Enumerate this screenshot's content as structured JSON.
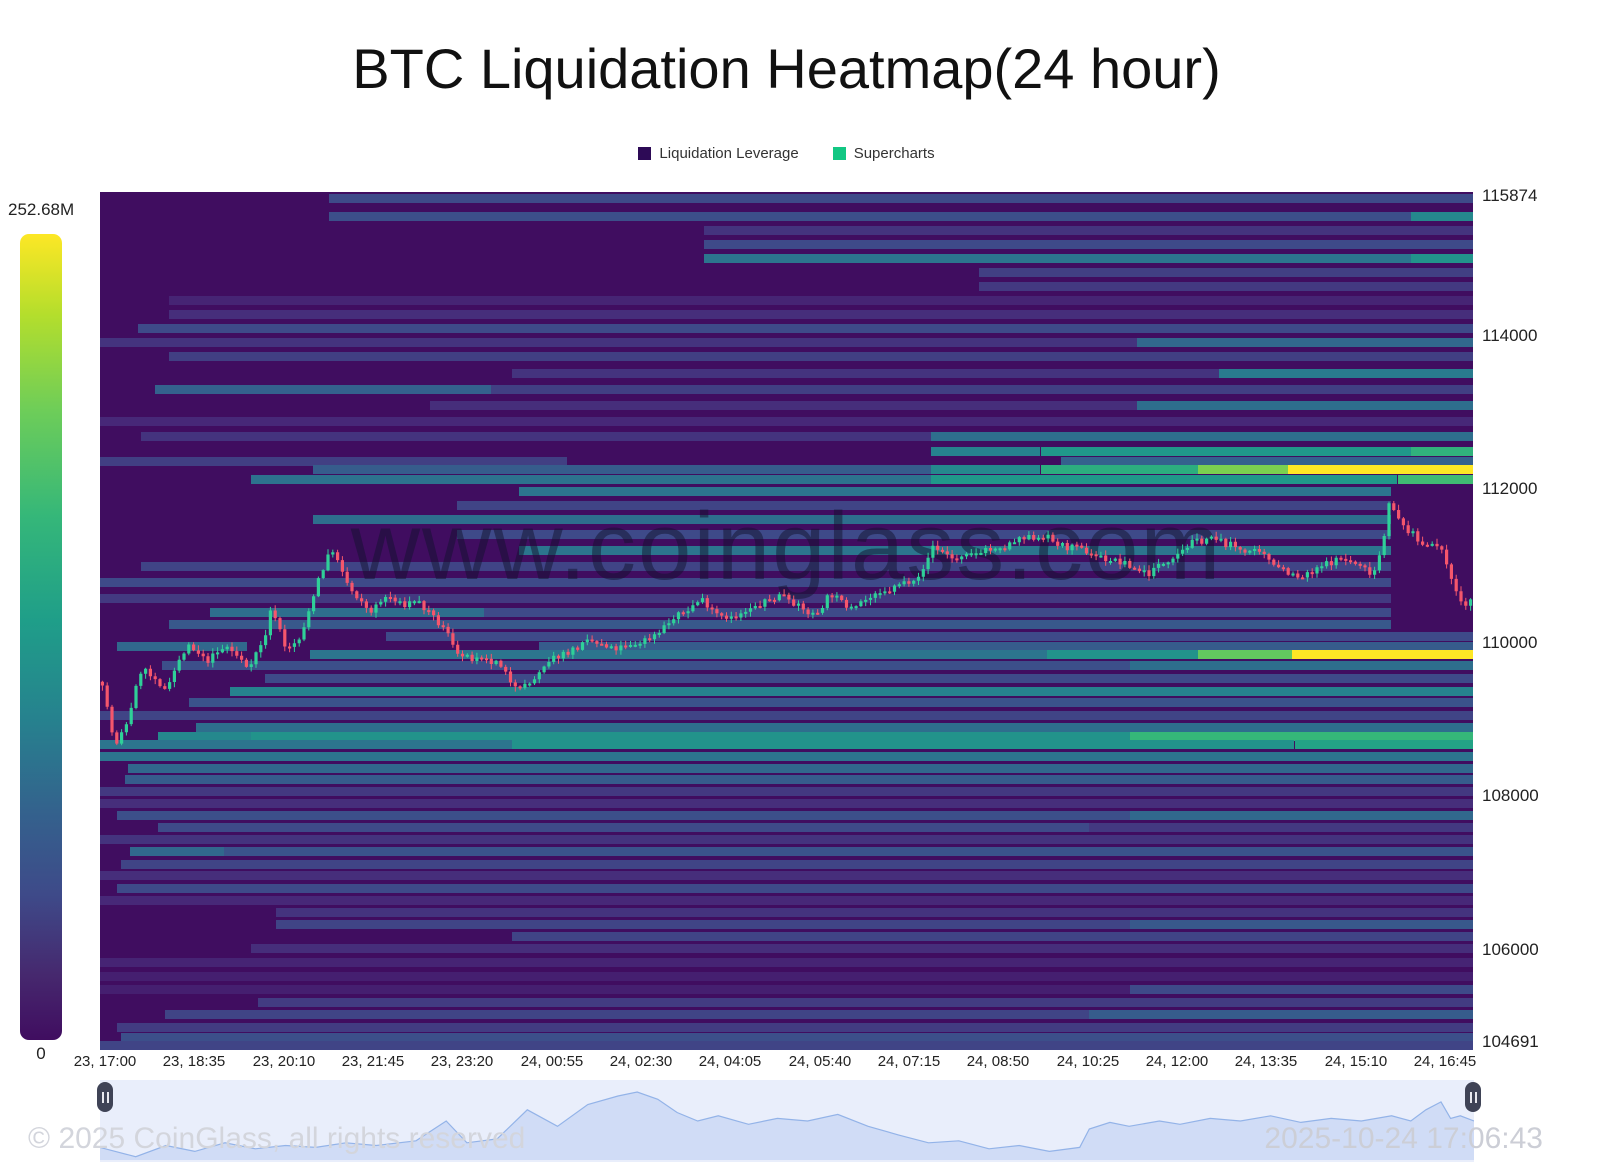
{
  "title": "BTC Liquidation Heatmap(24 hour)",
  "legend": [
    {
      "label": "Liquidation Leverage",
      "color": "#2d0a56"
    },
    {
      "label": "Supercharts",
      "color": "#12c783"
    }
  ],
  "colorbar": {
    "max_label": "252.68M",
    "min_label": "0"
  },
  "watermark": "www.coinglass.com",
  "footer": {
    "copyright": "© 2025 CoinGlass, all rights reserved",
    "timestamp": "2025-10-24 17:06:43"
  },
  "colors": {
    "heatmap_bg": "#400d60",
    "candle_up": "#2fd098",
    "candle_down": "#f5566c",
    "nav_fill": "#cbd8f4",
    "nav_line": "#93b3e8",
    "nav_bg": "#e9eefb",
    "peak_band": "#fde725"
  },
  "chart_data": {
    "type": "heatmap",
    "title": "BTC Liquidation Heatmap(24 hour)",
    "colorbar_max_label": "252.68M",
    "colorbar_min_label": "0",
    "y_axis": {
      "min": 104691,
      "max": 115874,
      "ticks": [
        115874,
        114000,
        112000,
        110000,
        108000,
        106000,
        104691
      ]
    },
    "x_ticks": [
      "23, 17:00",
      "23, 18:35",
      "23, 20:10",
      "23, 21:45",
      "23, 23:20",
      "24, 00:55",
      "24, 02:30",
      "24, 04:05",
      "24, 05:40",
      "24, 07:15",
      "24, 08:50",
      "24, 10:25",
      "24, 12:00",
      "24, 13:35",
      "24, 15:10",
      "24, 16:45"
    ],
    "bands": [
      [
        115795,
        [
          [
            0.167,
            1,
            0.3
          ]
        ]
      ],
      [
        115560,
        [
          [
            0.167,
            1,
            0.32
          ],
          [
            0.955,
            1,
            0.52
          ]
        ]
      ],
      [
        115375,
        [
          [
            0.44,
            1,
            0.22
          ]
        ]
      ],
      [
        115190,
        [
          [
            0.44,
            1,
            0.3
          ]
        ]
      ],
      [
        115010,
        [
          [
            0.44,
            1,
            0.46
          ],
          [
            0.955,
            1,
            0.56
          ]
        ]
      ],
      [
        114825,
        [
          [
            0.64,
            1,
            0.26
          ]
        ]
      ],
      [
        114640,
        [
          [
            0.64,
            1,
            0.24
          ]
        ]
      ],
      [
        114460,
        [
          [
            0.05,
            1,
            0.15
          ]
        ]
      ],
      [
        114275,
        [
          [
            0.05,
            1,
            0.2
          ]
        ]
      ],
      [
        114090,
        [
          [
            0.028,
            1,
            0.3
          ]
        ]
      ],
      [
        113910,
        [
          [
            0,
            1,
            0.22
          ],
          [
            0.755,
            1,
            0.42
          ]
        ]
      ],
      [
        113725,
        [
          [
            0.05,
            1,
            0.26
          ]
        ]
      ],
      [
        113515,
        [
          [
            0.3,
            1,
            0.22
          ],
          [
            0.815,
            1,
            0.48
          ]
        ]
      ],
      [
        113305,
        [
          [
            0.04,
            0.285,
            0.4
          ],
          [
            0.285,
            1,
            0.26
          ]
        ]
      ],
      [
        113095,
        [
          [
            0.24,
            1,
            0.2
          ],
          [
            0.755,
            1,
            0.44
          ]
        ]
      ],
      [
        112885,
        [
          [
            0,
            1,
            0.18
          ]
        ]
      ],
      [
        112690,
        [
          [
            0.03,
            1,
            0.22
          ],
          [
            0.605,
            1,
            0.44
          ]
        ]
      ],
      [
        112490,
        [
          [
            0.605,
            0.685,
            0.5
          ],
          [
            0.685,
            1,
            0.58
          ],
          [
            0.955,
            1,
            0.68
          ]
        ]
      ],
      [
        112360,
        [
          [
            0,
            0.34,
            0.26
          ],
          [
            0.7,
            1,
            0.4
          ]
        ]
      ],
      [
        112255,
        [
          [
            0.155,
            0.605,
            0.38
          ],
          [
            0.605,
            0.685,
            0.52
          ],
          [
            0.685,
            0.8,
            0.66
          ],
          [
            0.8,
            0.865,
            0.82
          ],
          [
            0.865,
            1,
            1
          ]
        ]
      ],
      [
        112125,
        [
          [
            0.11,
            0.605,
            0.45
          ],
          [
            0.605,
            0.945,
            0.58
          ],
          [
            0.945,
            1,
            0.72
          ]
        ]
      ],
      [
        111965,
        [
          [
            0.305,
            0.94,
            0.46
          ]
        ]
      ],
      [
        111785,
        [
          [
            0.26,
            0.94,
            0.28
          ]
        ]
      ],
      [
        111600,
        [
          [
            0.155,
            0.94,
            0.44
          ]
        ]
      ],
      [
        111415,
        [
          [
            0.26,
            0.94,
            0.3
          ]
        ]
      ],
      [
        111205,
        [
          [
            0.305,
            0.94,
            0.46
          ]
        ]
      ],
      [
        110995,
        [
          [
            0.03,
            0.94,
            0.28
          ]
        ]
      ],
      [
        110785,
        [
          [
            0,
            0.94,
            0.3
          ]
        ]
      ],
      [
        110575,
        [
          [
            0,
            0.94,
            0.24
          ]
        ]
      ],
      [
        110395,
        [
          [
            0.08,
            0.28,
            0.44
          ],
          [
            0.28,
            0.94,
            0.3
          ]
        ]
      ],
      [
        110235,
        [
          [
            0.05,
            0.94,
            0.36
          ]
        ]
      ],
      [
        110080,
        [
          [
            0.208,
            1,
            0.3
          ]
        ]
      ],
      [
        109950,
        [
          [
            0.012,
            0.107,
            0.42
          ],
          [
            0.32,
            1,
            0.38
          ]
        ]
      ],
      [
        109845,
        [
          [
            0.153,
            0.69,
            0.46
          ],
          [
            0.69,
            0.8,
            0.56
          ],
          [
            0.8,
            0.868,
            0.78
          ],
          [
            0.868,
            1,
            1
          ]
        ]
      ],
      [
        109700,
        [
          [
            0.045,
            0.75,
            0.32
          ],
          [
            0.75,
            1,
            0.44
          ]
        ]
      ],
      [
        109530,
        [
          [
            0.12,
            1,
            0.3
          ]
        ]
      ],
      [
        109370,
        [
          [
            0.095,
            1,
            0.5
          ]
        ]
      ],
      [
        109215,
        [
          [
            0.065,
            1,
            0.34
          ]
        ]
      ],
      [
        109055,
        [
          [
            0,
            1,
            0.28
          ]
        ]
      ],
      [
        108900,
        [
          [
            0.07,
            1,
            0.44
          ]
        ]
      ],
      [
        108780,
        [
          [
            0.042,
            0.11,
            0.52
          ],
          [
            0.11,
            0.75,
            0.56
          ],
          [
            0.75,
            1,
            0.7
          ]
        ]
      ],
      [
        108675,
        [
          [
            0,
            0.3,
            0.46
          ],
          [
            0.3,
            0.87,
            0.56
          ],
          [
            0.87,
            1,
            0.62
          ]
        ]
      ],
      [
        108520,
        [
          [
            0,
            1,
            0.46
          ]
        ]
      ],
      [
        108360,
        [
          [
            0.02,
            1,
            0.42
          ]
        ]
      ],
      [
        108215,
        [
          [
            0.018,
            1,
            0.38
          ]
        ]
      ],
      [
        108060,
        [
          [
            0,
            1,
            0.24
          ]
        ]
      ],
      [
        107900,
        [
          [
            0,
            1,
            0.2
          ]
        ]
      ],
      [
        107745,
        [
          [
            0.012,
            0.75,
            0.32
          ],
          [
            0.75,
            1,
            0.42
          ]
        ]
      ],
      [
        107590,
        [
          [
            0.042,
            0.72,
            0.3
          ],
          [
            0.72,
            1,
            0.24
          ]
        ]
      ],
      [
        107430,
        [
          [
            0,
            1,
            0.22
          ]
        ]
      ],
      [
        107275,
        [
          [
            0.022,
            0.09,
            0.42
          ],
          [
            0.09,
            1,
            0.34
          ]
        ]
      ],
      [
        107115,
        [
          [
            0.015,
            1,
            0.28
          ]
        ]
      ],
      [
        106960,
        [
          [
            0,
            1,
            0.2
          ]
        ]
      ],
      [
        106800,
        [
          [
            0.012,
            1,
            0.3
          ]
        ]
      ],
      [
        106645,
        [
          [
            0,
            1,
            0.18
          ]
        ]
      ],
      [
        106485,
        [
          [
            0.128,
            1,
            0.22
          ]
        ]
      ],
      [
        106330,
        [
          [
            0.128,
            0.75,
            0.28
          ],
          [
            0.75,
            1,
            0.36
          ]
        ]
      ],
      [
        106170,
        [
          [
            0.3,
            1,
            0.28
          ]
        ]
      ],
      [
        106015,
        [
          [
            0.11,
            1,
            0.2
          ]
        ]
      ],
      [
        105830,
        [
          [
            0,
            1,
            0.15
          ]
        ]
      ],
      [
        105645,
        [
          [
            0,
            1,
            0.12
          ]
        ]
      ],
      [
        105475,
        [
          [
            0,
            0.75,
            0.12
          ],
          [
            0.75,
            1,
            0.3
          ]
        ]
      ],
      [
        105305,
        [
          [
            0.115,
            1,
            0.25
          ]
        ]
      ],
      [
        105150,
        [
          [
            0.047,
            0.72,
            0.28
          ],
          [
            0.72,
            1,
            0.38
          ]
        ]
      ],
      [
        104990,
        [
          [
            0.012,
            1,
            0.25
          ]
        ]
      ],
      [
        104860,
        [
          [
            0.015,
            1,
            0.32
          ]
        ]
      ],
      [
        104745,
        [
          [
            0,
            1,
            0.28
          ]
        ]
      ]
    ],
    "price_path": [
      [
        0.0,
        109490
      ],
      [
        0.006,
        108900
      ],
      [
        0.01,
        108640
      ],
      [
        0.018,
        108970
      ],
      [
        0.029,
        109690
      ],
      [
        0.044,
        109360
      ],
      [
        0.062,
        109950
      ],
      [
        0.076,
        109760
      ],
      [
        0.091,
        109950
      ],
      [
        0.106,
        109690
      ],
      [
        0.118,
        110020
      ],
      [
        0.124,
        110480
      ],
      [
        0.135,
        109890
      ],
      [
        0.146,
        110080
      ],
      [
        0.157,
        110810
      ],
      [
        0.168,
        111230
      ],
      [
        0.176,
        110870
      ],
      [
        0.186,
        110550
      ],
      [
        0.197,
        110410
      ],
      [
        0.208,
        110610
      ],
      [
        0.219,
        110480
      ],
      [
        0.229,
        110570
      ],
      [
        0.24,
        110350
      ],
      [
        0.251,
        110150
      ],
      [
        0.262,
        109820
      ],
      [
        0.275,
        109760
      ],
      [
        0.288,
        109730
      ],
      [
        0.299,
        109490
      ],
      [
        0.31,
        109430
      ],
      [
        0.32,
        109600
      ],
      [
        0.331,
        109820
      ],
      [
        0.344,
        109910
      ],
      [
        0.357,
        110020
      ],
      [
        0.371,
        109910
      ],
      [
        0.386,
        109950
      ],
      [
        0.401,
        110080
      ],
      [
        0.414,
        110260
      ],
      [
        0.426,
        110410
      ],
      [
        0.438,
        110570
      ],
      [
        0.45,
        110390
      ],
      [
        0.462,
        110310
      ],
      [
        0.475,
        110440
      ],
      [
        0.487,
        110550
      ],
      [
        0.499,
        110650
      ],
      [
        0.51,
        110440
      ],
      [
        0.521,
        110350
      ],
      [
        0.532,
        110650
      ],
      [
        0.543,
        110480
      ],
      [
        0.555,
        110550
      ],
      [
        0.568,
        110610
      ],
      [
        0.581,
        110740
      ],
      [
        0.591,
        110830
      ],
      [
        0.601,
        110940
      ],
      [
        0.606,
        111270
      ],
      [
        0.615,
        111180
      ],
      [
        0.625,
        111070
      ],
      [
        0.635,
        111140
      ],
      [
        0.645,
        111230
      ],
      [
        0.655,
        111180
      ],
      [
        0.666,
        111310
      ],
      [
        0.677,
        111360
      ],
      [
        0.688,
        111400
      ],
      [
        0.699,
        111270
      ],
      [
        0.71,
        111230
      ],
      [
        0.721,
        111180
      ],
      [
        0.732,
        111100
      ],
      [
        0.743,
        111050
      ],
      [
        0.754,
        110970
      ],
      [
        0.765,
        110910
      ],
      [
        0.776,
        111050
      ],
      [
        0.787,
        111200
      ],
      [
        0.798,
        111310
      ],
      [
        0.808,
        111360
      ],
      [
        0.819,
        111310
      ],
      [
        0.83,
        111230
      ],
      [
        0.841,
        111180
      ],
      [
        0.852,
        111100
      ],
      [
        0.863,
        110970
      ],
      [
        0.874,
        110830
      ],
      [
        0.885,
        110910
      ],
      [
        0.896,
        111050
      ],
      [
        0.907,
        111100
      ],
      [
        0.918,
        111000
      ],
      [
        0.929,
        110910
      ],
      [
        0.936,
        111300
      ],
      [
        0.94,
        111870
      ],
      [
        0.946,
        111620
      ],
      [
        0.952,
        111500
      ],
      [
        0.958,
        111400
      ],
      [
        0.965,
        111270
      ],
      [
        0.972,
        111330
      ],
      [
        0.98,
        111140
      ],
      [
        0.985,
        110940
      ],
      [
        0.99,
        110610
      ],
      [
        0.996,
        110480
      ],
      [
        1.0,
        110550
      ]
    ],
    "navigator": [
      [
        0.0,
        0.16
      ],
      [
        0.026,
        0.02
      ],
      [
        0.048,
        0.19
      ],
      [
        0.069,
        0.1
      ],
      [
        0.091,
        0.23
      ],
      [
        0.113,
        0.14
      ],
      [
        0.135,
        0.19
      ],
      [
        0.157,
        0.16
      ],
      [
        0.179,
        0.23
      ],
      [
        0.201,
        0.19
      ],
      [
        0.23,
        0.26
      ],
      [
        0.252,
        0.56
      ],
      [
        0.267,
        0.23
      ],
      [
        0.289,
        0.29
      ],
      [
        0.311,
        0.73
      ],
      [
        0.333,
        0.48
      ],
      [
        0.355,
        0.81
      ],
      [
        0.377,
        0.94
      ],
      [
        0.391,
        1.0
      ],
      [
        0.406,
        0.89
      ],
      [
        0.42,
        0.69
      ],
      [
        0.435,
        0.56
      ],
      [
        0.45,
        0.64
      ],
      [
        0.472,
        0.51
      ],
      [
        0.493,
        0.6
      ],
      [
        0.515,
        0.56
      ],
      [
        0.537,
        0.66
      ],
      [
        0.559,
        0.48
      ],
      [
        0.581,
        0.35
      ],
      [
        0.603,
        0.23
      ],
      [
        0.625,
        0.26
      ],
      [
        0.647,
        0.14
      ],
      [
        0.669,
        0.19
      ],
      [
        0.691,
        0.1
      ],
      [
        0.713,
        0.16
      ],
      [
        0.72,
        0.44
      ],
      [
        0.735,
        0.54
      ],
      [
        0.749,
        0.48
      ],
      [
        0.771,
        0.56
      ],
      [
        0.786,
        0.51
      ],
      [
        0.808,
        0.6
      ],
      [
        0.83,
        0.56
      ],
      [
        0.852,
        0.64
      ],
      [
        0.874,
        0.54
      ],
      [
        0.896,
        0.6
      ],
      [
        0.918,
        0.56
      ],
      [
        0.94,
        0.64
      ],
      [
        0.954,
        0.56
      ],
      [
        0.965,
        0.73
      ],
      [
        0.976,
        0.85
      ],
      [
        0.983,
        0.6
      ],
      [
        0.99,
        0.64
      ],
      [
        1.0,
        0.56
      ]
    ]
  }
}
